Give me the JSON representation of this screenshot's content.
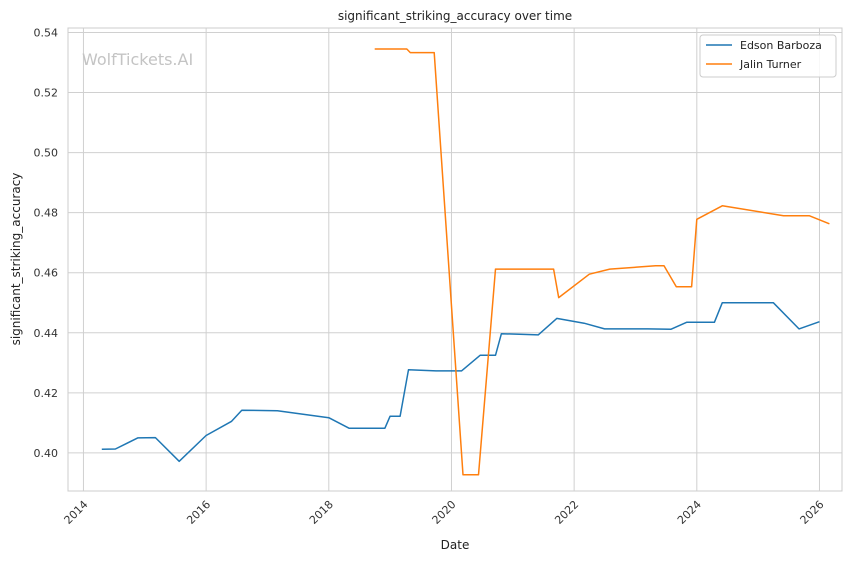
{
  "watermark": "WolfTickets.AI",
  "chart_data": {
    "type": "line",
    "title": "significant_striking_accuracy over time",
    "xlabel": "Date",
    "ylabel": "significant_striking_accuracy",
    "x_ticks": [
      "2014",
      "2016",
      "2018",
      "2020",
      "2022",
      "2024",
      "2026"
    ],
    "y_ticks": [
      "0.40",
      "0.42",
      "0.44",
      "0.46",
      "0.48",
      "0.50",
      "0.52",
      "0.54"
    ],
    "xlim": [
      "2013-10-01",
      "2026-05-15"
    ],
    "ylim": [
      0.3873,
      0.5415
    ],
    "grid": true,
    "legend_position": "top-right",
    "series": [
      {
        "name": "Edson Barboza",
        "color": "#1f77b4",
        "points": [
          [
            "2014-04-20",
            0.4012
          ],
          [
            "2014-07-10",
            0.4013
          ],
          [
            "2014-11-20",
            0.405
          ],
          [
            "2015-03-05",
            0.4051
          ],
          [
            "2015-07-25",
            0.3972
          ],
          [
            "2016-01-01",
            0.4058
          ],
          [
            "2016-06-01",
            0.4105
          ],
          [
            "2016-08-01",
            0.4142
          ],
          [
            "2017-03-01",
            0.414
          ],
          [
            "2018-01-01",
            0.4117
          ],
          [
            "2018-05-01",
            0.4082
          ],
          [
            "2018-12-01",
            0.4082
          ],
          [
            "2019-01-01",
            0.4122
          ],
          [
            "2019-03-01",
            0.4122
          ],
          [
            "2019-04-20",
            0.4277
          ],
          [
            "2019-10-01",
            0.4273
          ],
          [
            "2020-03-01",
            0.4273
          ],
          [
            "2020-06-20",
            0.4325
          ],
          [
            "2020-09-20",
            0.4325
          ],
          [
            "2020-10-25",
            0.4397
          ],
          [
            "2021-06-01",
            0.4393
          ],
          [
            "2021-09-20",
            0.4448
          ],
          [
            "2022-03-01",
            0.4432
          ],
          [
            "2022-07-01",
            0.4413
          ],
          [
            "2023-03-15",
            0.4413
          ],
          [
            "2023-08-01",
            0.4412
          ],
          [
            "2023-11-01",
            0.4435
          ],
          [
            "2024-04-15",
            0.4435
          ],
          [
            "2024-06-01",
            0.45
          ],
          [
            "2025-04-01",
            0.45
          ],
          [
            "2025-09-01",
            0.4413
          ],
          [
            "2026-01-01",
            0.4437
          ]
        ]
      },
      {
        "name": "Jalin Turner",
        "color": "#ff7f0e",
        "points": [
          [
            "2018-10-01",
            0.5345
          ],
          [
            "2019-04-10",
            0.5345
          ],
          [
            "2019-05-01",
            0.5333
          ],
          [
            "2019-09-20",
            0.5333
          ],
          [
            "2020-03-10",
            0.3927
          ],
          [
            "2020-06-10",
            0.3927
          ],
          [
            "2020-09-20",
            0.4612
          ],
          [
            "2021-09-01",
            0.4612
          ],
          [
            "2021-10-01",
            0.4517
          ],
          [
            "2022-04-01",
            0.4595
          ],
          [
            "2022-08-01",
            0.4612
          ],
          [
            "2023-05-01",
            0.4623
          ],
          [
            "2023-06-20",
            0.4623
          ],
          [
            "2023-09-01",
            0.4553
          ],
          [
            "2023-12-01",
            0.4553
          ],
          [
            "2024-01-01",
            0.4778
          ],
          [
            "2024-06-01",
            0.4823
          ],
          [
            "2025-06-01",
            0.479
          ],
          [
            "2025-11-01",
            0.479
          ],
          [
            "2026-03-01",
            0.4763
          ]
        ]
      }
    ]
  }
}
